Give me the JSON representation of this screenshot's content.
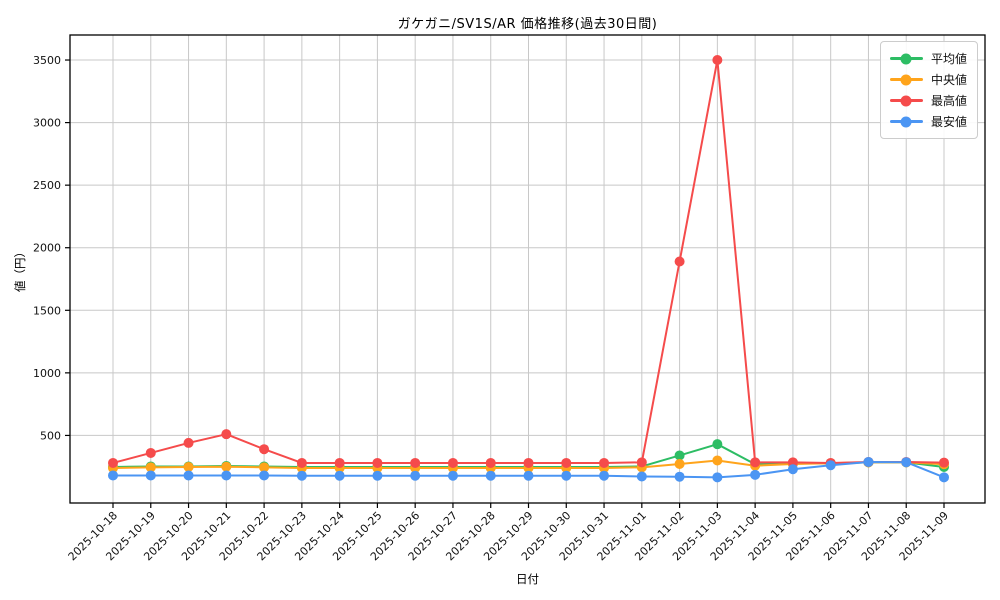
{
  "colors": {
    "background": "#ffffff",
    "axis_frame": "#000000",
    "grid": "#c8c8c8",
    "tick_text": "#111111",
    "legend_border": "#cccccc"
  },
  "chart_data": {
    "type": "line",
    "title": "ガケガニ/SV1S/AR 価格推移(過去30日間)",
    "xlabel": "日付",
    "ylabel": "値（円）",
    "x": [
      "2025-10-18",
      "2025-10-19",
      "2025-10-20",
      "2025-10-21",
      "2025-10-22",
      "2025-10-23",
      "2025-10-24",
      "2025-10-25",
      "2025-10-26",
      "2025-10-27",
      "2025-10-28",
      "2025-10-29",
      "2025-10-30",
      "2025-10-31",
      "2025-11-01",
      "2025-11-02",
      "2025-11-03",
      "2025-11-04",
      "2025-11-05",
      "2025-11-06",
      "2025-11-07",
      "2025-11-08",
      "2025-11-09"
    ],
    "ylim": [
      -40,
      3700
    ],
    "yticks": [
      500,
      1000,
      1500,
      2000,
      2500,
      3000,
      3500
    ],
    "grid": true,
    "legend_position": "upper right",
    "series": [
      {
        "key": "average",
        "name": "平均値",
        "color": "#2dbd64",
        "values": [
          248,
          252,
          252,
          256,
          252,
          248,
          248,
          248,
          248,
          248,
          248,
          248,
          248,
          248,
          252,
          340,
          430,
          270,
          275,
          278,
          285,
          285,
          248
        ]
      },
      {
        "key": "median",
        "name": "中央値",
        "color": "#ffa41b",
        "values": [
          240,
          245,
          248,
          250,
          245,
          240,
          240,
          240,
          240,
          240,
          240,
          240,
          240,
          240,
          245,
          272,
          300,
          258,
          272,
          278,
          285,
          285,
          270
        ]
      },
      {
        "key": "max",
        "name": "最高値",
        "color": "#f54b4b",
        "values": [
          280,
          360,
          440,
          510,
          390,
          280,
          280,
          280,
          280,
          280,
          280,
          280,
          280,
          280,
          285,
          1890,
          3500,
          285,
          285,
          280,
          288,
          288,
          283
        ]
      },
      {
        "key": "min",
        "name": "最安値",
        "color": "#4b95f3",
        "values": [
          180,
          180,
          180,
          180,
          180,
          178,
          178,
          178,
          178,
          178,
          178,
          178,
          178,
          178,
          172,
          170,
          165,
          185,
          230,
          262,
          288,
          286,
          165
        ]
      }
    ]
  }
}
